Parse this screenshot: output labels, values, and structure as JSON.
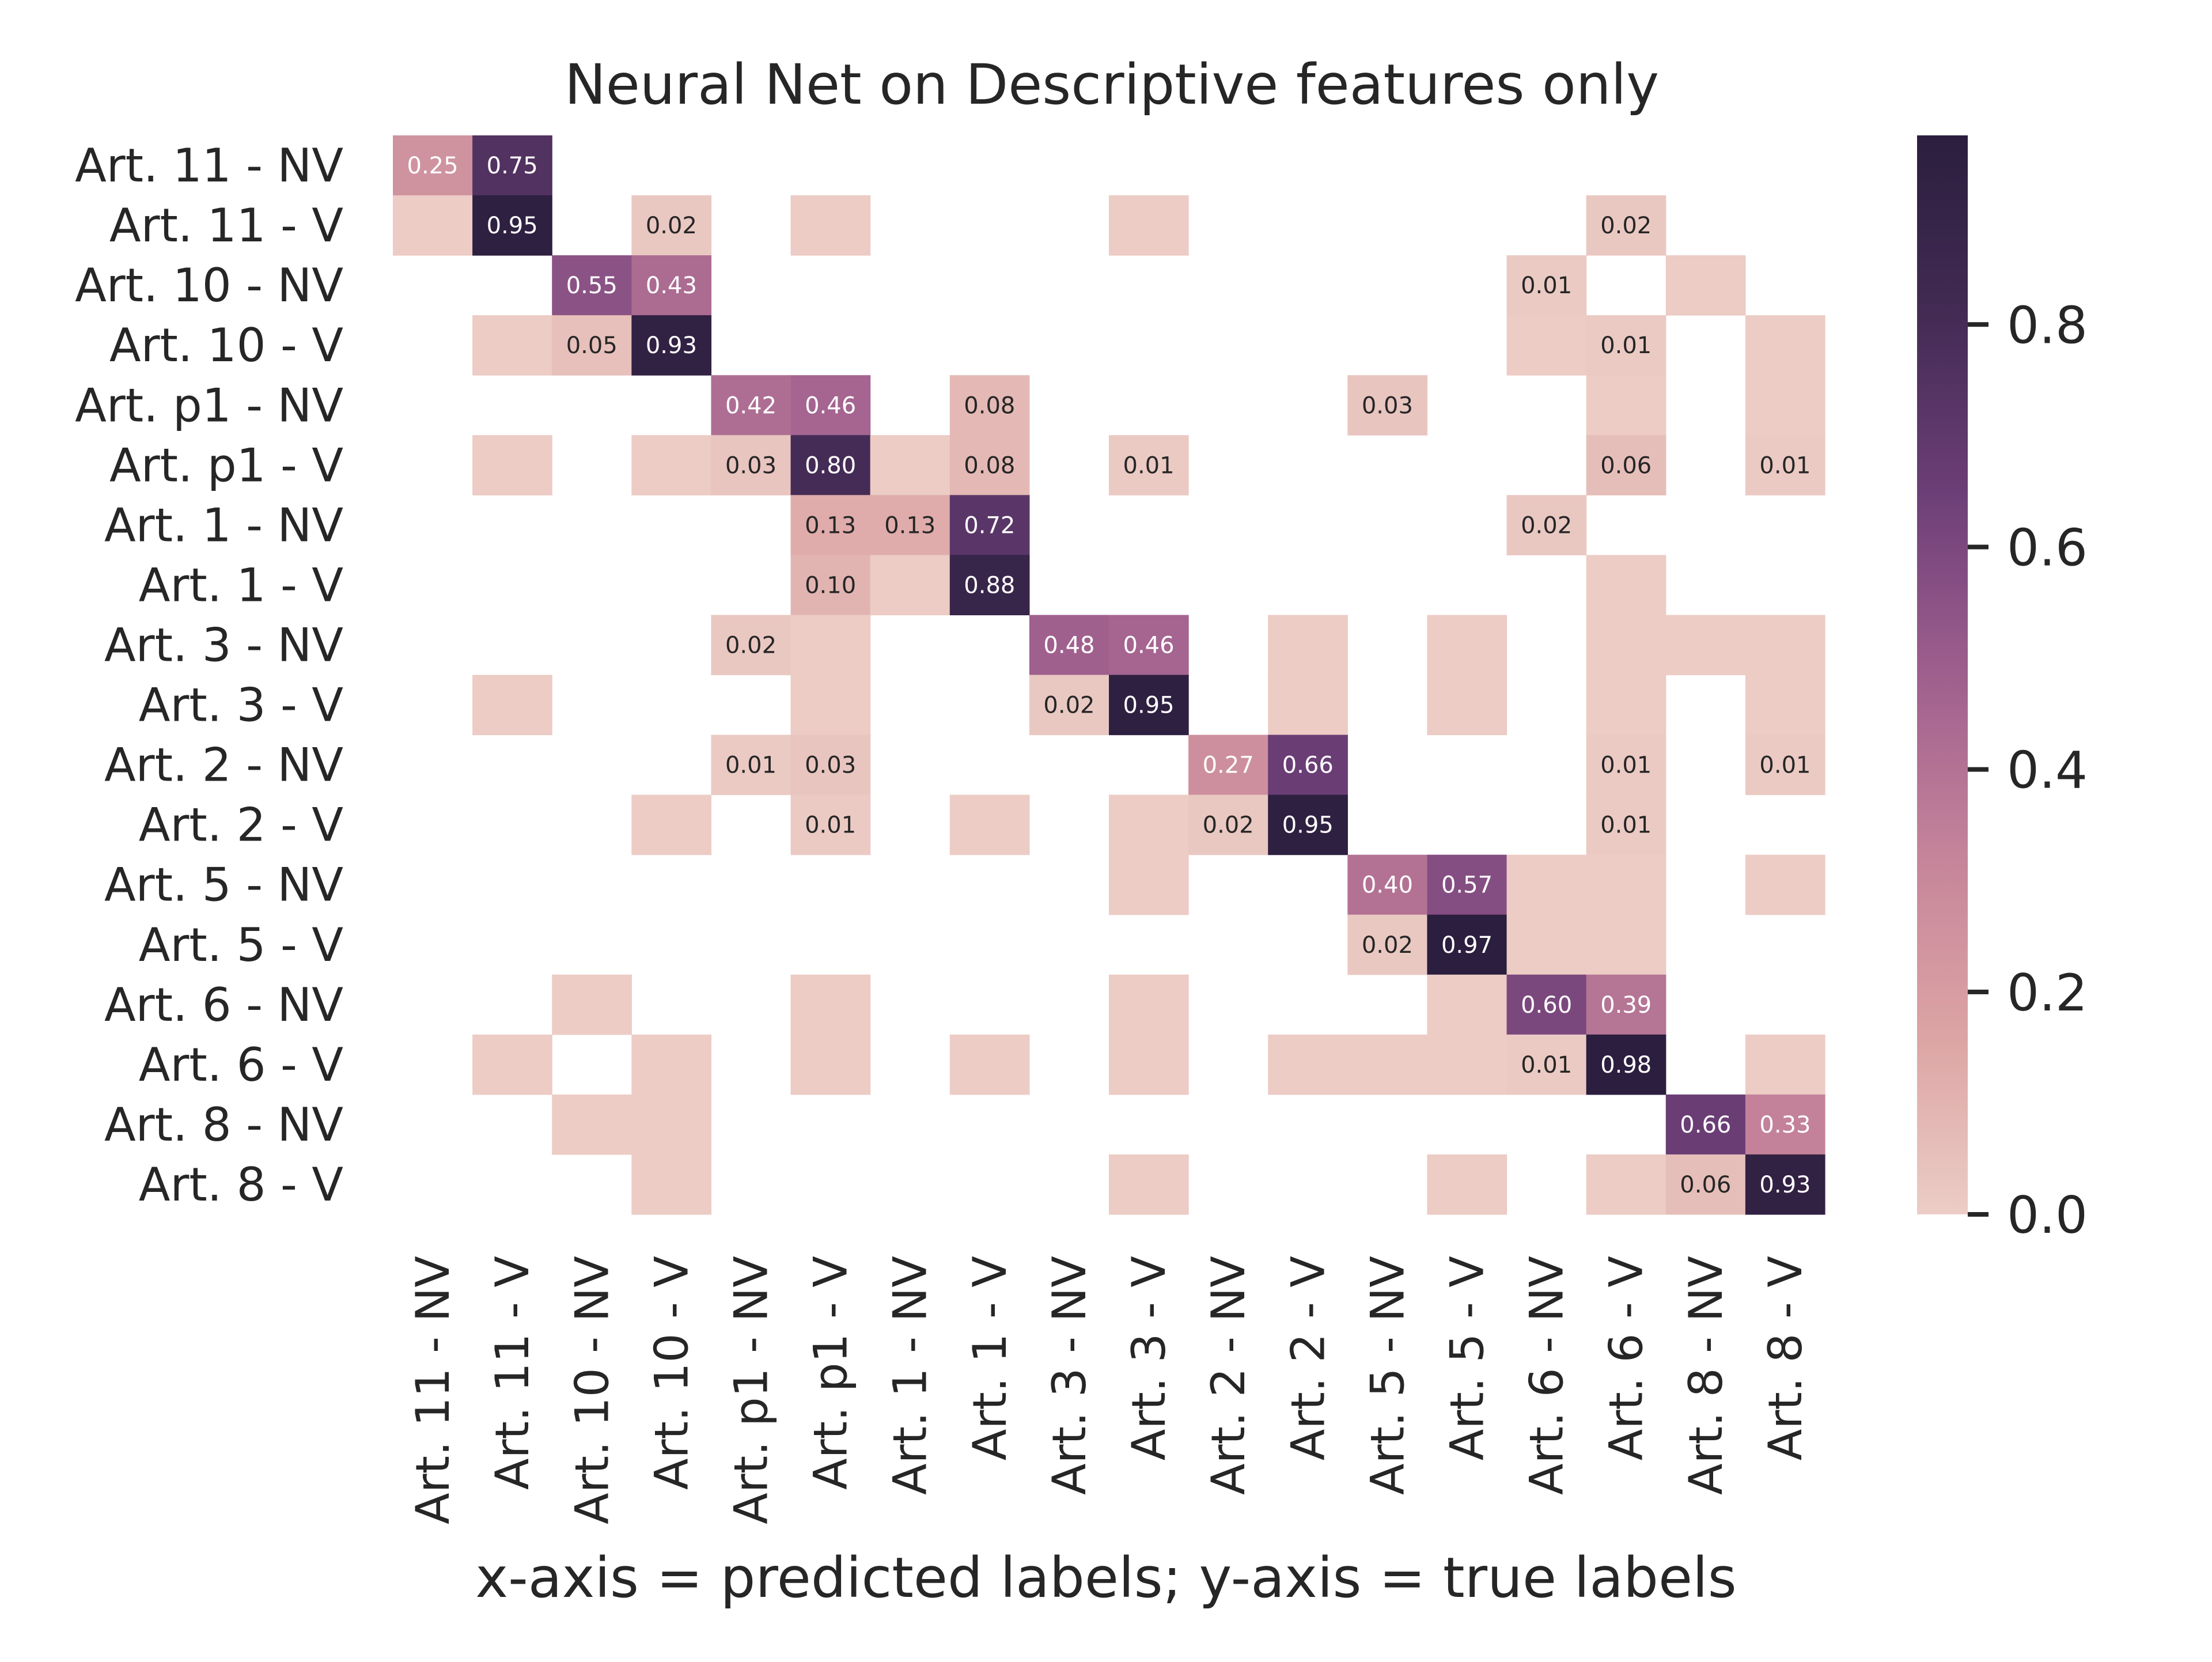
{
  "chart_data": {
    "type": "heatmap",
    "title": "Neural Net on Descriptive features only",
    "xlabel": "x-axis = predicted labels; y-axis = true labels",
    "ylabel": "",
    "row_labels": [
      "Art. 11 - NV",
      "Art. 11 - V",
      "Art. 10 - NV",
      "Art. 10 - V",
      "Art. p1 - NV",
      "Art. p1 - V",
      "Art. 1 - NV",
      "Art. 1 - V",
      "Art. 3 - NV",
      "Art. 3 - V",
      "Art. 2 - NV",
      "Art. 2 - V",
      "Art. 5 - NV",
      "Art. 5 - V",
      "Art. 6 - NV",
      "Art. 6 - V",
      "Art. 8 - NV",
      "Art. 8 - V"
    ],
    "col_labels": [
      "Art. 11 - NV",
      "Art. 11 - V",
      "Art. 10 - NV",
      "Art. 10 - V",
      "Art. p1 - NV",
      "Art. p1 - V",
      "Art. 1 - NV",
      "Art. 1 - V",
      "Art. 3 - NV",
      "Art. 3 - V",
      "Art. 2 - NV",
      "Art. 2 - V",
      "Art. 5 - NV",
      "Art. 5 - V",
      "Art. 6 - NV",
      "Art. 6 - V",
      "Art. 8 - NV",
      "Art. 8 - V"
    ],
    "annotations_shown": "values >= 0.01",
    "cells": [
      [
        0,
        0,
        0.25
      ],
      [
        0,
        1,
        0.75
      ],
      [
        1,
        0,
        0.003
      ],
      [
        1,
        1,
        0.95
      ],
      [
        1,
        3,
        0.02
      ],
      [
        1,
        5,
        0.003
      ],
      [
        1,
        9,
        0.003
      ],
      [
        1,
        15,
        0.02
      ],
      [
        2,
        2,
        0.55
      ],
      [
        2,
        3,
        0.43
      ],
      [
        2,
        14,
        0.01
      ],
      [
        2,
        16,
        0.003
      ],
      [
        3,
        1,
        0.003
      ],
      [
        3,
        2,
        0.05
      ],
      [
        3,
        3,
        0.93
      ],
      [
        3,
        14,
        0.003
      ],
      [
        3,
        15,
        0.01
      ],
      [
        3,
        17,
        0.003
      ],
      [
        4,
        4,
        0.42
      ],
      [
        4,
        5,
        0.46
      ],
      [
        4,
        7,
        0.08
      ],
      [
        4,
        12,
        0.03
      ],
      [
        4,
        15,
        0.003
      ],
      [
        4,
        17,
        0.003
      ],
      [
        5,
        1,
        0.003
      ],
      [
        5,
        3,
        0.003
      ],
      [
        5,
        4,
        0.03
      ],
      [
        5,
        5,
        0.8
      ],
      [
        5,
        6,
        0.003
      ],
      [
        5,
        7,
        0.08
      ],
      [
        5,
        9,
        0.01
      ],
      [
        5,
        15,
        0.06
      ],
      [
        5,
        17,
        0.01
      ],
      [
        6,
        5,
        0.13
      ],
      [
        6,
        6,
        0.13
      ],
      [
        6,
        7,
        0.72
      ],
      [
        6,
        14,
        0.02
      ],
      [
        7,
        5,
        0.1
      ],
      [
        7,
        6,
        0.003
      ],
      [
        7,
        7,
        0.88
      ],
      [
        7,
        15,
        0.003
      ],
      [
        8,
        4,
        0.02
      ],
      [
        8,
        5,
        0.003
      ],
      [
        8,
        8,
        0.48
      ],
      [
        8,
        9,
        0.46
      ],
      [
        8,
        11,
        0.003
      ],
      [
        8,
        13,
        0.003
      ],
      [
        8,
        15,
        0.003
      ],
      [
        8,
        16,
        0.003
      ],
      [
        8,
        17,
        0.003
      ],
      [
        9,
        1,
        0.003
      ],
      [
        9,
        5,
        0.003
      ],
      [
        9,
        8,
        0.02
      ],
      [
        9,
        9,
        0.95
      ],
      [
        9,
        11,
        0.003
      ],
      [
        9,
        13,
        0.003
      ],
      [
        9,
        15,
        0.003
      ],
      [
        9,
        17,
        0.003
      ],
      [
        10,
        4,
        0.01
      ],
      [
        10,
        5,
        0.03
      ],
      [
        10,
        10,
        0.27
      ],
      [
        10,
        11,
        0.66
      ],
      [
        10,
        15,
        0.01
      ],
      [
        10,
        17,
        0.01
      ],
      [
        11,
        3,
        0.003
      ],
      [
        11,
        5,
        0.01
      ],
      [
        11,
        7,
        0.003
      ],
      [
        11,
        9,
        0.003
      ],
      [
        11,
        10,
        0.02
      ],
      [
        11,
        11,
        0.95
      ],
      [
        11,
        15,
        0.01
      ],
      [
        12,
        9,
        0.003
      ],
      [
        12,
        12,
        0.4
      ],
      [
        12,
        13,
        0.57
      ],
      [
        12,
        14,
        0.003
      ],
      [
        12,
        15,
        0.003
      ],
      [
        12,
        17,
        0.003
      ],
      [
        13,
        12,
        0.02
      ],
      [
        13,
        13,
        0.97
      ],
      [
        13,
        14,
        0.003
      ],
      [
        13,
        15,
        0.003
      ],
      [
        14,
        2,
        0.003
      ],
      [
        14,
        5,
        0.003
      ],
      [
        14,
        9,
        0.003
      ],
      [
        14,
        13,
        0.003
      ],
      [
        14,
        14,
        0.6
      ],
      [
        14,
        15,
        0.39
      ],
      [
        15,
        1,
        0.003
      ],
      [
        15,
        3,
        0.003
      ],
      [
        15,
        5,
        0.003
      ],
      [
        15,
        7,
        0.003
      ],
      [
        15,
        9,
        0.003
      ],
      [
        15,
        11,
        0.003
      ],
      [
        15,
        12,
        0.003
      ],
      [
        15,
        13,
        0.003
      ],
      [
        15,
        14,
        0.01
      ],
      [
        15,
        15,
        0.98
      ],
      [
        15,
        17,
        0.003
      ],
      [
        16,
        2,
        0.003
      ],
      [
        16,
        3,
        0.003
      ],
      [
        16,
        16,
        0.66
      ],
      [
        16,
        17,
        0.33
      ],
      [
        17,
        3,
        0.003
      ],
      [
        17,
        9,
        0.003
      ],
      [
        17,
        13,
        0.003
      ],
      [
        17,
        15,
        0.003
      ],
      [
        17,
        16,
        0.06
      ],
      [
        17,
        17,
        0.93
      ]
    ],
    "colorbar": {
      "range": [
        0,
        0.97
      ],
      "ticks": [
        "0.0",
        "0.2",
        "0.4",
        "0.6",
        "0.8"
      ],
      "tick_values": [
        0,
        0.2,
        0.4,
        0.6,
        0.8
      ],
      "color_stops": [
        "#eccdc6",
        "#dca4a4",
        "#c5849a",
        "#9f5f8e",
        "#6d3f78",
        "#432b54",
        "#2b1e3e"
      ]
    },
    "grid": false,
    "legend": "none"
  }
}
